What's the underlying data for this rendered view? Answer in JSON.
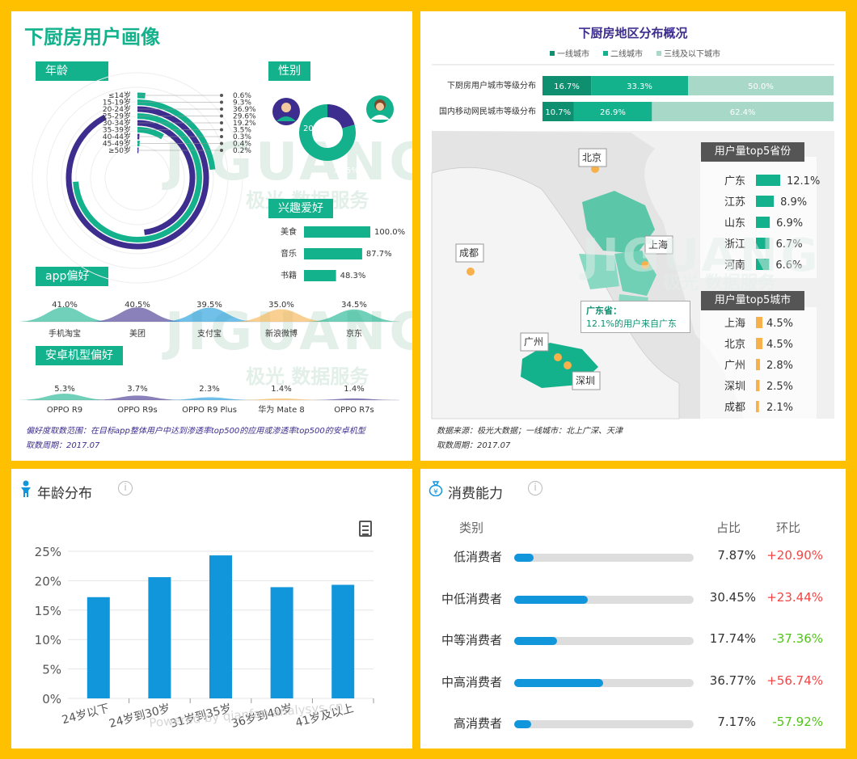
{
  "panel1": {
    "title": "下厨房用户画像",
    "age_tag": "年龄",
    "gender_tag": "性别",
    "interest_tag": "兴趣爱好",
    "app_tag": "app偏好",
    "phone_tag": "安卓机型偏好",
    "footnote1": "偏好度取数范围：在目标app整体用户中达到渗透率top500的应用或渗透率top500的安卓机型",
    "footnote2": "取数周期：2017.07",
    "watermark_en": "JIGUANG",
    "watermark_cn": "极光 数据服务"
  },
  "panel2": {
    "title": "下厨房地区分布概况",
    "legend": [
      "一线城市",
      "二线城市",
      "三线及以下城市"
    ],
    "row_labels": [
      "下厨房用户城市等级分布",
      "国内移动网民城市等级分布"
    ],
    "cities_on_map": [
      "北京",
      "成都",
      "上海",
      "广州",
      "深圳"
    ],
    "callout_title": "广东省：",
    "callout_text": "12.1%的用户来自广东",
    "prov_title": "用户量top5省份",
    "city_title": "用户量top5城市",
    "footnote1": "数据来源：极光大数据；一线城市：北上广深、天津",
    "footnote2": "取数周期：2017.07",
    "watermark_en": "JIGUANG",
    "watermark_cn": "极光 数据服务"
  },
  "panel3": {
    "title": "年龄分布",
    "watermark": "Powered by qianfan.analysys.cn"
  },
  "panel4": {
    "title": "消费能力",
    "col_category": "类别",
    "col_share": "占比",
    "col_change": "环比"
  },
  "colors": {
    "green": "#13B18C",
    "purple": "#3C2D8E",
    "light_green": "#A8D8C8",
    "dark_green": "#0E8F70",
    "blue": "#1296DB",
    "orange": "#F7B14A",
    "red": "#F24545",
    "pos_green": "#52C41A"
  },
  "chart_data": [
    {
      "type": "radial-bar",
      "title": "年龄",
      "categories": [
        "≤14岁",
        "15-19岁",
        "20-24岁",
        "25-29岁",
        "30-34岁",
        "35-39岁",
        "40-44岁",
        "45-49岁",
        "≥50岁"
      ],
      "values": [
        0.6,
        9.3,
        36.9,
        29.6,
        19.2,
        3.5,
        0.3,
        0.4,
        0.2
      ],
      "labels": [
        "0.6%",
        "9.3%",
        "36.9%",
        "29.6%",
        "19.2%",
        "3.5%",
        "0.3%",
        "0.4%",
        "0.2%"
      ]
    },
    {
      "type": "pie",
      "title": "性别",
      "categories": [
        "male",
        "female"
      ],
      "values": [
        20.5,
        79.5
      ],
      "labels": [
        "20.5%",
        "79.5%"
      ]
    },
    {
      "type": "bar",
      "title": "兴趣爱好",
      "categories": [
        "美食",
        "音乐",
        "书籍"
      ],
      "values": [
        100.0,
        87.7,
        48.3
      ],
      "labels": [
        "100.0%",
        "87.7%",
        "48.3%"
      ]
    },
    {
      "type": "area",
      "title": "app偏好",
      "categories": [
        "手机淘宝",
        "美团",
        "支付宝",
        "新浪微博",
        "京东"
      ],
      "values": [
        41.0,
        40.5,
        39.5,
        35.0,
        34.5
      ],
      "labels": [
        "41.0%",
        "40.5%",
        "39.5%",
        "35.0%",
        "34.5%"
      ]
    },
    {
      "type": "area",
      "title": "安卓机型偏好",
      "categories": [
        "OPPO R9",
        "OPPO R9s",
        "OPPO R9 Plus",
        "华为 Mate 8",
        "OPPO R7s"
      ],
      "values": [
        5.3,
        3.7,
        2.3,
        1.4,
        1.4
      ],
      "labels": [
        "5.3%",
        "3.7%",
        "2.3%",
        "1.4%",
        "1.4%"
      ]
    },
    {
      "type": "bar",
      "title": "下厨房地区分布概况",
      "categories": [
        "下厨房用户城市等级分布",
        "国内移动网民城市等级分布"
      ],
      "series": [
        {
          "name": "一线城市",
          "values": [
            16.7,
            10.7
          ],
          "labels": [
            "16.7%",
            "10.7%"
          ]
        },
        {
          "name": "二线城市",
          "values": [
            33.3,
            26.9
          ],
          "labels": [
            "33.3%",
            "26.9%"
          ]
        },
        {
          "name": "三线及以下城市",
          "values": [
            50.0,
            62.4
          ],
          "labels": [
            "50.0%",
            "62.4%"
          ]
        }
      ]
    },
    {
      "type": "bar",
      "title": "用户量top5省份",
      "categories": [
        "广东",
        "江苏",
        "山东",
        "浙江",
        "河南"
      ],
      "values": [
        12.1,
        8.9,
        6.9,
        6.7,
        6.6
      ],
      "labels": [
        "12.1%",
        "8.9%",
        "6.9%",
        "6.7%",
        "6.6%"
      ]
    },
    {
      "type": "bar",
      "title": "用户量top5城市",
      "categories": [
        "上海",
        "北京",
        "广州",
        "深圳",
        "成都"
      ],
      "values": [
        4.5,
        4.5,
        2.8,
        2.5,
        2.1
      ],
      "labels": [
        "4.5%",
        "4.5%",
        "2.8%",
        "2.5%",
        "2.1%"
      ]
    },
    {
      "type": "bar",
      "title": "年龄分布",
      "categories": [
        "24岁以下",
        "24岁到30岁",
        "31岁到35岁",
        "36岁到40岁",
        "41岁及以上"
      ],
      "values": [
        17.2,
        20.6,
        24.3,
        18.9,
        19.3
      ],
      "ylim": [
        0,
        25
      ],
      "yticks": [
        "0%",
        "5%",
        "10%",
        "15%",
        "20%",
        "25%"
      ],
      "grid": true
    },
    {
      "type": "table",
      "title": "消费能力",
      "categories": [
        "低消费者",
        "中低消费者",
        "中等消费者",
        "中高消费者",
        "高消费者"
      ],
      "values": [
        7.87,
        30.45,
        17.74,
        36.77,
        7.17
      ],
      "share_labels": [
        "7.87%",
        "30.45%",
        "17.74%",
        "36.77%",
        "7.17%"
      ],
      "change": [
        "+20.90%",
        "+23.44%",
        "-37.36%",
        "+56.74%",
        "-57.92%"
      ]
    }
  ]
}
